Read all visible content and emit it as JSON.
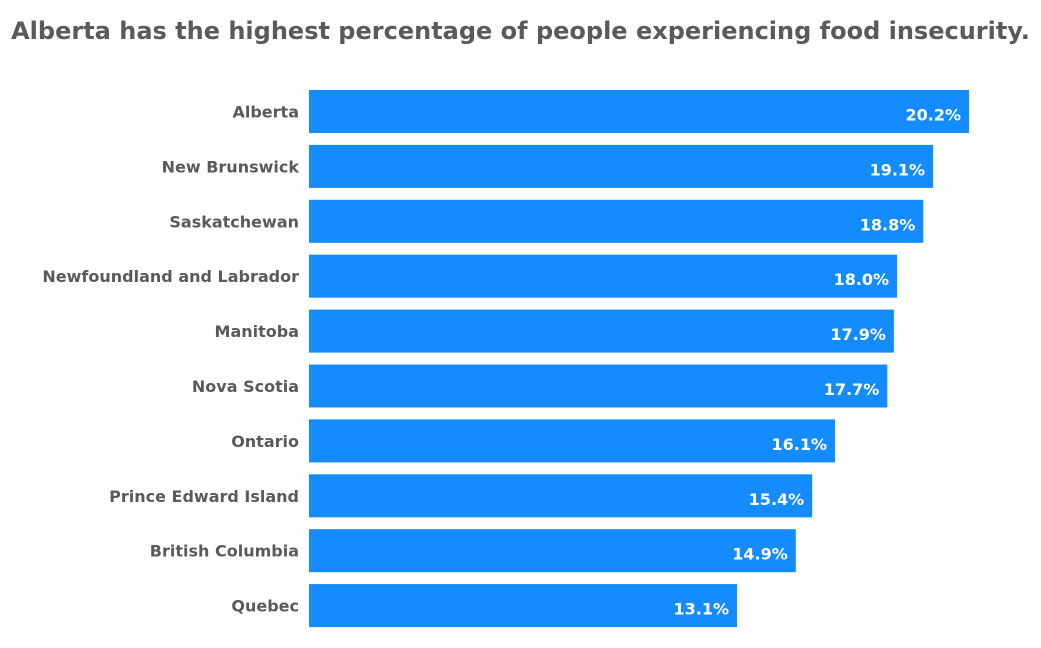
{
  "chart_data": {
    "type": "bar",
    "orientation": "horizontal",
    "title": "Alberta has the highest percentage of people experiencing food insecurity.",
    "categories": [
      "Alberta",
      "New Brunswick",
      "Saskatchewan",
      "Newfoundland and Labrador",
      "Manitoba",
      "Nova Scotia",
      "Ontario",
      "Prince Edward Island",
      "British Columbia",
      "Quebec"
    ],
    "values": [
      20.2,
      19.1,
      18.8,
      18.0,
      17.9,
      17.7,
      16.1,
      15.4,
      14.9,
      13.1
    ],
    "value_labels": [
      "20.2%",
      "19.1%",
      "18.8%",
      "18.0%",
      "17.9%",
      "17.7%",
      "16.1%",
      "15.4%",
      "14.9%",
      "13.1%"
    ],
    "xlim": [
      0,
      20.2
    ],
    "xlabel": "",
    "ylabel": "",
    "grid": false,
    "legend": "none",
    "colors": {
      "bar": "#148cff",
      "label_text": "#5a5a5a",
      "value_text": "#ffffff"
    }
  }
}
